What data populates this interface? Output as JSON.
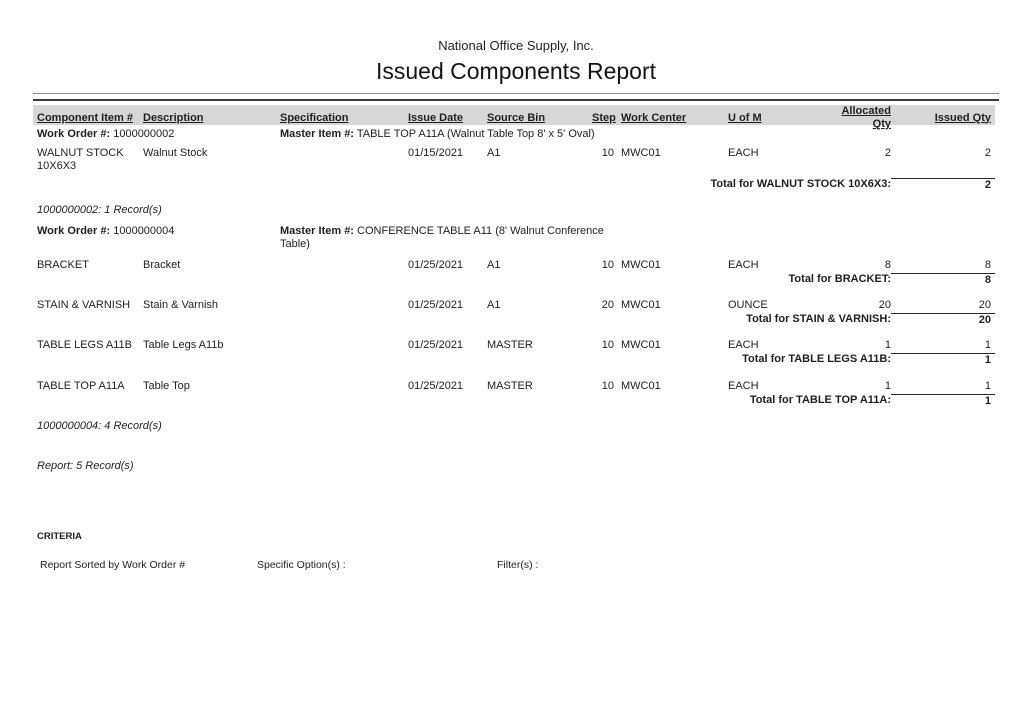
{
  "header": {
    "company": "National Office Supply, Inc.",
    "title": "Issued Components Report"
  },
  "table": {
    "columns": [
      "Component Item #",
      "Description",
      "Specification",
      "Issue Date",
      "Source Bin",
      "Step",
      "Work Center",
      "U of M",
      "Allocated Qty",
      "Issued Qty"
    ]
  },
  "groups": [
    {
      "work_order_label": "Work Order #:",
      "work_order_number": "1000000002",
      "master_item_label": "Master Item #:",
      "master_item": "TABLE TOP A11A (Walnut Table Top 8' x 5' Oval)",
      "rows": [
        {
          "component_item": "WALNUT STOCK 10X6X3",
          "description": "Walnut Stock",
          "specification": "",
          "issue_date": "01/15/2021",
          "source_bin": "A1",
          "step": "10",
          "work_center": "MWC01",
          "u_of_m": "EACH",
          "allocated_qty": "2",
          "issued_qty": "2",
          "total_label": "Total for WALNUT STOCK 10X6X3:",
          "total_value": "2"
        }
      ],
      "record_count": "1000000002: 1 Record(s)"
    },
    {
      "work_order_label": "Work Order #:",
      "work_order_number": "1000000004",
      "master_item_label": "Master Item #:",
      "master_item": "CONFERENCE TABLE A11 (8' Walnut Conference Table)",
      "rows": [
        {
          "component_item": "BRACKET",
          "description": "Bracket",
          "specification": "",
          "issue_date": "01/25/2021",
          "source_bin": "A1",
          "step": "10",
          "work_center": "MWC01",
          "u_of_m": "EACH",
          "allocated_qty": "8",
          "issued_qty": "8",
          "total_label": "Total for BRACKET:",
          "total_value": "8"
        },
        {
          "component_item": "STAIN & VARNISH",
          "description": "Stain & Varnish",
          "specification": "",
          "issue_date": "01/25/2021",
          "source_bin": "A1",
          "step": "20",
          "work_center": "MWC01",
          "u_of_m": "OUNCE",
          "allocated_qty": "20",
          "issued_qty": "20",
          "total_label": "Total for STAIN & VARNISH:",
          "total_value": "20"
        },
        {
          "component_item": "TABLE LEGS A11B",
          "description": "Table Legs A11b",
          "specification": "",
          "issue_date": "01/25/2021",
          "source_bin": "MASTER",
          "step": "10",
          "work_center": "MWC01",
          "u_of_m": "EACH",
          "allocated_qty": "1",
          "issued_qty": "1",
          "total_label": "Total for TABLE LEGS A11B:",
          "total_value": "1"
        },
        {
          "component_item": "TABLE TOP A11A",
          "description": "Table Top",
          "specification": "",
          "issue_date": "01/25/2021",
          "source_bin": "MASTER",
          "step": "10",
          "work_center": "MWC01",
          "u_of_m": "EACH",
          "allocated_qty": "1",
          "issued_qty": "1",
          "total_label": "Total for TABLE TOP A11A:",
          "total_value": "1"
        }
      ],
      "record_count": "1000000004: 4 Record(s)"
    }
  ],
  "summary": {
    "report_record_count": "Report: 5 Record(s)"
  },
  "criteria": {
    "heading": "CRITERIA",
    "sorted_by": "Report Sorted by Work Order #",
    "specific_options_label": "Specific Option(s) :",
    "filters_label": "Filter(s) :"
  },
  "colors": {
    "header_band": "#d7d7d7",
    "text": "#1f1f1f",
    "rule_dark": "#3a3a3a",
    "rule_light": "#8a8a8a"
  }
}
